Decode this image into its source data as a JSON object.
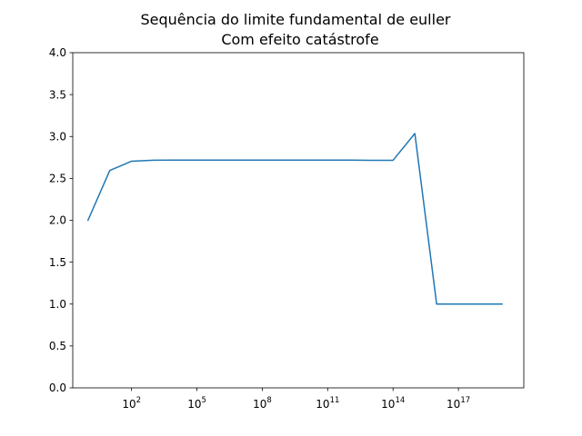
{
  "chart_data": {
    "type": "line",
    "title_line1": "Sequência do limite fundamental de euller",
    "title_line2": "Com efeito catástrofe",
    "xlabel": "",
    "ylabel": "",
    "x_scale": "log",
    "grid": false,
    "legend": "none",
    "xlim": [
      0.2,
      1e+20
    ],
    "ylim": [
      0.0,
      4.0
    ],
    "y_ticks": [
      {
        "value": 0.0,
        "label": "0.0"
      },
      {
        "value": 0.5,
        "label": "0.5"
      },
      {
        "value": 1.0,
        "label": "1.0"
      },
      {
        "value": 1.5,
        "label": "1.5"
      },
      {
        "value": 2.0,
        "label": "2.0"
      },
      {
        "value": 2.5,
        "label": "2.5"
      },
      {
        "value": 3.0,
        "label": "3.0"
      },
      {
        "value": 3.5,
        "label": "3.5"
      },
      {
        "value": 4.0,
        "label": "4.0"
      }
    ],
    "x_ticks": [
      {
        "value": 100.0,
        "base": "10",
        "exp": "2"
      },
      {
        "value": 100000.0,
        "base": "10",
        "exp": "5"
      },
      {
        "value": 100000000.0,
        "base": "10",
        "exp": "8"
      },
      {
        "value": 100000000000.0,
        "base": "10",
        "exp": "11"
      },
      {
        "value": 100000000000000.0,
        "base": "10",
        "exp": "14"
      },
      {
        "value": 1e+17,
        "base": "10",
        "exp": "17"
      }
    ],
    "series": [
      {
        "color": "#1f77b4",
        "x": [
          1,
          10,
          100,
          1000,
          10000,
          100000,
          1000000,
          10000000,
          100000000,
          1000000000,
          10000000000,
          100000000000,
          1000000000000,
          10000000000000,
          100000000000000,
          1000000000000000,
          10000000000000000,
          100000000000000000,
          1000000000000000000,
          10000000000000000000
        ],
        "y": [
          2.0,
          2.594,
          2.705,
          2.717,
          2.718,
          2.718,
          2.718,
          2.718,
          2.718,
          2.718,
          2.718,
          2.718,
          2.718,
          2.716,
          2.716,
          3.035,
          1.0,
          1.0,
          1.0,
          1.0
        ]
      }
    ]
  }
}
